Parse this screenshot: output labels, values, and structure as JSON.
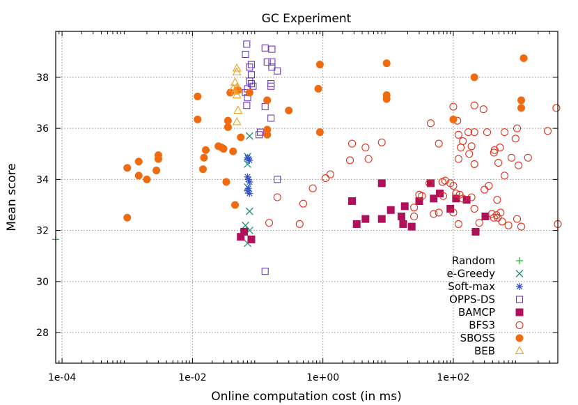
{
  "chart_data": {
    "type": "scatter",
    "title": "GC Experiment",
    "xlabel": "Online computation cost (in ms)",
    "ylabel": "Mean score",
    "x_scale": "log",
    "xlim": [
      8e-05,
      4000
    ],
    "ylim": [
      26.8,
      39.8
    ],
    "x_ticks": [
      0.0001,
      0.01,
      1,
      100
    ],
    "x_tick_labels": [
      "1e-04",
      "1e-02",
      "1e+00",
      "1e+02"
    ],
    "y_ticks": [
      28,
      30,
      32,
      34,
      36,
      38
    ],
    "y_tick_labels": [
      "28",
      "30",
      "32",
      "34",
      "36",
      "38"
    ],
    "grid": true,
    "legend_position": "bottom-right",
    "series": [
      {
        "name": "Random",
        "marker": "plus",
        "color": "#22c022",
        "points": [
          [
            8e-05,
            31.65
          ]
        ]
      },
      {
        "name": "e-Greedy",
        "marker": "x",
        "color": "#1a9070",
        "points": [
          [
            0.075,
            35.7
          ],
          [
            0.07,
            34.9
          ],
          [
            0.07,
            34.6
          ],
          [
            0.07,
            33.7
          ],
          [
            0.075,
            32.75
          ],
          [
            0.065,
            32.2
          ],
          [
            0.075,
            32.0
          ],
          [
            0.07,
            31.5
          ]
        ]
      },
      {
        "name": "Soft-max",
        "marker": "star",
        "color": "#3a55c8",
        "points": [
          [
            0.07,
            34.85
          ],
          [
            0.075,
            34.75
          ],
          [
            0.072,
            34.8
          ],
          [
            0.07,
            34.1
          ],
          [
            0.075,
            33.9
          ],
          [
            0.072,
            33.65
          ],
          [
            0.07,
            33.55
          ],
          [
            0.075,
            33.45
          ],
          [
            0.072,
            34.0
          ]
        ]
      },
      {
        "name": "OPPS-DS",
        "marker": "square-open",
        "color": "#6a3ab8",
        "points": [
          [
            0.068,
            39.3
          ],
          [
            0.13,
            39.15
          ],
          [
            0.165,
            39.1
          ],
          [
            0.14,
            38.6
          ],
          [
            0.165,
            38.6
          ],
          [
            0.165,
            38.4
          ],
          [
            0.08,
            38.5
          ],
          [
            0.075,
            38.4
          ],
          [
            0.065,
            38.9
          ],
          [
            0.2,
            38.25
          ],
          [
            0.08,
            38.1
          ],
          [
            0.075,
            37.85
          ],
          [
            0.08,
            37.75
          ],
          [
            0.085,
            37.65
          ],
          [
            0.07,
            37.55
          ],
          [
            0.065,
            37.4
          ],
          [
            0.16,
            37.75
          ],
          [
            0.16,
            37.65
          ],
          [
            0.07,
            37.2
          ],
          [
            0.068,
            36.9
          ],
          [
            0.13,
            36.85
          ],
          [
            0.16,
            36.4
          ],
          [
            0.11,
            35.85
          ],
          [
            0.105,
            35.75
          ],
          [
            0.2,
            34.0
          ],
          [
            0.13,
            30.4
          ]
        ]
      },
      {
        "name": "BAMCP",
        "marker": "square-filled",
        "color": "#b0105a",
        "points": [
          [
            0.062,
            31.95
          ],
          [
            0.055,
            31.75
          ],
          [
            0.08,
            31.65
          ],
          [
            8.0,
            33.85
          ],
          [
            2.8,
            33.15
          ],
          [
            45,
            33.85
          ],
          [
            62,
            33.45
          ],
          [
            50,
            33.25
          ],
          [
            30,
            33.15
          ],
          [
            18,
            32.95
          ],
          [
            11,
            32.8
          ],
          [
            110,
            33.25
          ],
          [
            160,
            33.2
          ],
          [
            90,
            32.85
          ],
          [
            4.5,
            32.45
          ],
          [
            8.0,
            32.45
          ],
          [
            16,
            32.55
          ],
          [
            3.3,
            32.25
          ],
          [
            17,
            32.25
          ],
          [
            23,
            32.15
          ],
          [
            310,
            32.55
          ],
          [
            220,
            31.95
          ]
        ]
      },
      {
        "name": "BFS3",
        "marker": "circle-open",
        "color": "#e0301a",
        "points": [
          [
            100,
            36.85
          ],
          [
            210,
            36.9
          ],
          [
            290,
            36.75
          ],
          [
            3800,
            36.8
          ],
          [
            115,
            36.3
          ],
          [
            45,
            36.2
          ],
          [
            950,
            36.0
          ],
          [
            610,
            35.85
          ],
          [
            2800,
            35.9
          ],
          [
            330,
            35.85
          ],
          [
            210,
            35.85
          ],
          [
            170,
            35.85
          ],
          [
            120,
            35.75
          ],
          [
            140,
            35.5
          ],
          [
            900,
            35.6
          ],
          [
            2.8,
            35.4
          ],
          [
            8.0,
            35.45
          ],
          [
            4.5,
            35.25
          ],
          [
            60,
            35.4
          ],
          [
            520,
            35.25
          ],
          [
            130,
            35.25
          ],
          [
            190,
            35.3
          ],
          [
            430,
            35.15
          ],
          [
            420,
            35.05
          ],
          [
            175,
            35.0
          ],
          [
            1400,
            34.85
          ],
          [
            2.6,
            34.75
          ],
          [
            5.0,
            34.8
          ],
          [
            780,
            34.85
          ],
          [
            490,
            34.65
          ],
          [
            120,
            34.8
          ],
          [
            210,
            34.6
          ],
          [
            1000,
            34.55
          ],
          [
            1.3,
            34.2
          ],
          [
            1.1,
            34.05
          ],
          [
            610,
            34.15
          ],
          [
            43,
            33.85
          ],
          [
            68,
            33.9
          ],
          [
            75,
            33.95
          ],
          [
            90,
            33.85
          ],
          [
            100,
            33.75
          ],
          [
            350,
            33.75
          ],
          [
            110,
            33.45
          ],
          [
            125,
            33.4
          ],
          [
            140,
            33.25
          ],
          [
            190,
            33.3
          ],
          [
            33,
            33.35
          ],
          [
            30,
            33.4
          ],
          [
            70,
            33.35
          ],
          [
            300,
            33.6
          ],
          [
            0.7,
            33.65
          ],
          [
            0.2,
            33.3
          ],
          [
            0.5,
            33.05
          ],
          [
            210,
            32.85
          ],
          [
            390,
            32.65
          ],
          [
            460,
            32.6
          ],
          [
            480,
            32.5
          ],
          [
            420,
            32.5
          ],
          [
            530,
            32.7
          ],
          [
            470,
            33.2
          ],
          [
            100,
            32.7
          ],
          [
            60,
            32.7
          ],
          [
            50,
            32.65
          ],
          [
            0.15,
            32.3
          ],
          [
            0.44,
            32.25
          ],
          [
            120,
            32.25
          ],
          [
            250,
            32.3
          ],
          [
            560,
            32.35
          ],
          [
            950,
            32.45
          ],
          [
            4000,
            32.25
          ],
          [
            700,
            32.2
          ],
          [
            1100,
            32.15
          ],
          [
            25,
            32.55
          ],
          [
            25,
            32.9
          ]
        ]
      },
      {
        "name": "SBOSS",
        "marker": "circle-filled",
        "color": "#f06a10",
        "points": [
          [
            1200,
            38.75
          ],
          [
            0.9,
            38.5
          ],
          [
            9.5,
            38.55
          ],
          [
            210,
            38.0
          ],
          [
            0.85,
            37.55
          ],
          [
            9.5,
            37.3
          ],
          [
            9.5,
            37.15
          ],
          [
            1100,
            37.1
          ],
          [
            1100,
            36.8
          ],
          [
            0.012,
            37.25
          ],
          [
            0.038,
            37.4
          ],
          [
            0.05,
            37.5
          ],
          [
            0.075,
            37.4
          ],
          [
            0.14,
            37.1
          ],
          [
            0.3,
            36.7
          ],
          [
            0.012,
            36.35
          ],
          [
            0.035,
            36.3
          ],
          [
            0.035,
            36.05
          ],
          [
            0.14,
            35.95
          ],
          [
            0.14,
            35.75
          ],
          [
            100,
            36.35
          ],
          [
            0.9,
            35.85
          ],
          [
            0.055,
            35.65
          ],
          [
            0.016,
            35.15
          ],
          [
            0.025,
            35.3
          ],
          [
            0.028,
            35.25
          ],
          [
            0.03,
            35.2
          ],
          [
            0.042,
            35.1
          ],
          [
            0.003,
            34.95
          ],
          [
            0.003,
            34.8
          ],
          [
            0.015,
            34.85
          ],
          [
            0.0015,
            34.7
          ],
          [
            0.001,
            34.45
          ],
          [
            0.0015,
            34.15
          ],
          [
            0.0028,
            34.35
          ],
          [
            0.002,
            34.0
          ],
          [
            0.0145,
            34.4
          ],
          [
            0.033,
            33.9
          ],
          [
            0.045,
            33.0
          ],
          [
            0.001,
            32.5
          ]
        ]
      },
      {
        "name": "BEB",
        "marker": "triangle-open",
        "color": "#f0a020",
        "points": [
          [
            0.048,
            38.35
          ],
          [
            0.048,
            38.2
          ],
          [
            0.045,
            37.8
          ],
          [
            0.048,
            37.6
          ],
          [
            0.05,
            37.5
          ],
          [
            0.045,
            37.45
          ],
          [
            0.042,
            37.55
          ],
          [
            0.048,
            37.3
          ],
          [
            0.05,
            36.7
          ],
          [
            0.048,
            36.25
          ]
        ]
      }
    ]
  }
}
